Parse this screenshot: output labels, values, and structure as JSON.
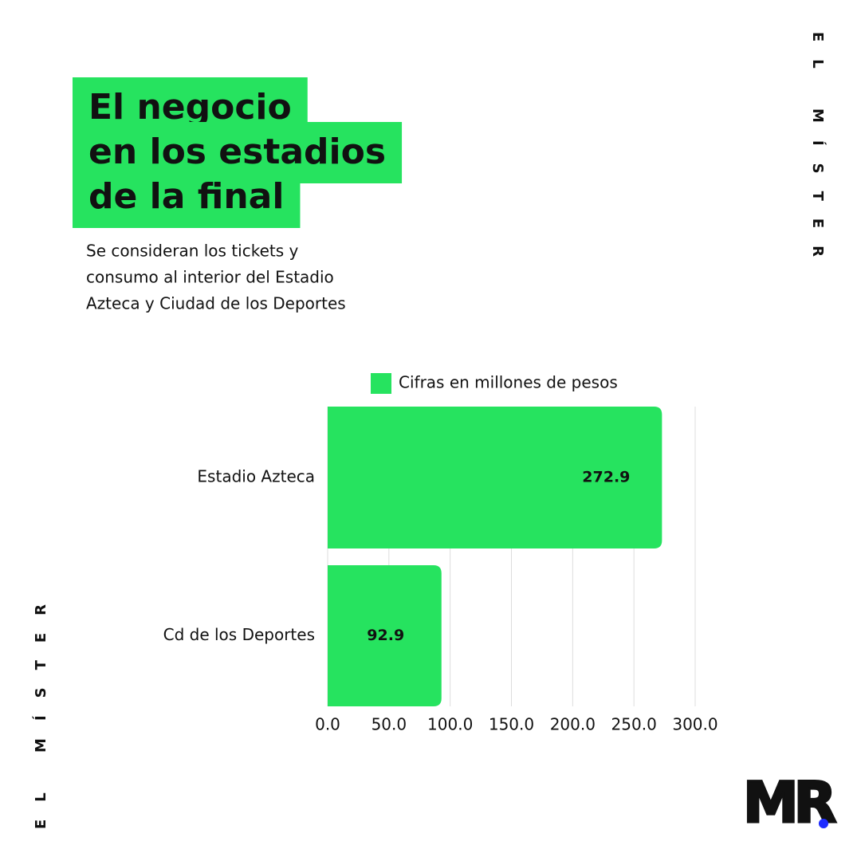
{
  "title_lines": [
    "El negocio",
    "en los estadios",
    "de la final"
  ],
  "subtitle_lines": [
    "Se consideran los tickets y",
    "consumo al interior del Estadio",
    "Azteca y Ciudad de los Deportes"
  ],
  "brand": "EL MÍSTER",
  "logo": "MR",
  "chart_data": {
    "type": "barh",
    "categories": [
      "Estadio Azteca",
      "Cd de los Deportes"
    ],
    "series": [
      {
        "name": "Cifras en millones de pesos",
        "color": "#26e35f",
        "values": [
          272.9,
          92.9
        ]
      }
    ],
    "xlim": [
      0,
      300
    ],
    "xticks": [
      {
        "value": 0,
        "label": "0.0"
      },
      {
        "value": 50,
        "label": "50.0"
      },
      {
        "value": 100,
        "label": "100.0"
      },
      {
        "value": 150,
        "label": "150.0"
      },
      {
        "value": 200,
        "label": "200.0"
      },
      {
        "value": 250,
        "label": "250.0"
      },
      {
        "value": 300,
        "label": "300.0"
      }
    ],
    "grid": true,
    "legend": "top"
  }
}
